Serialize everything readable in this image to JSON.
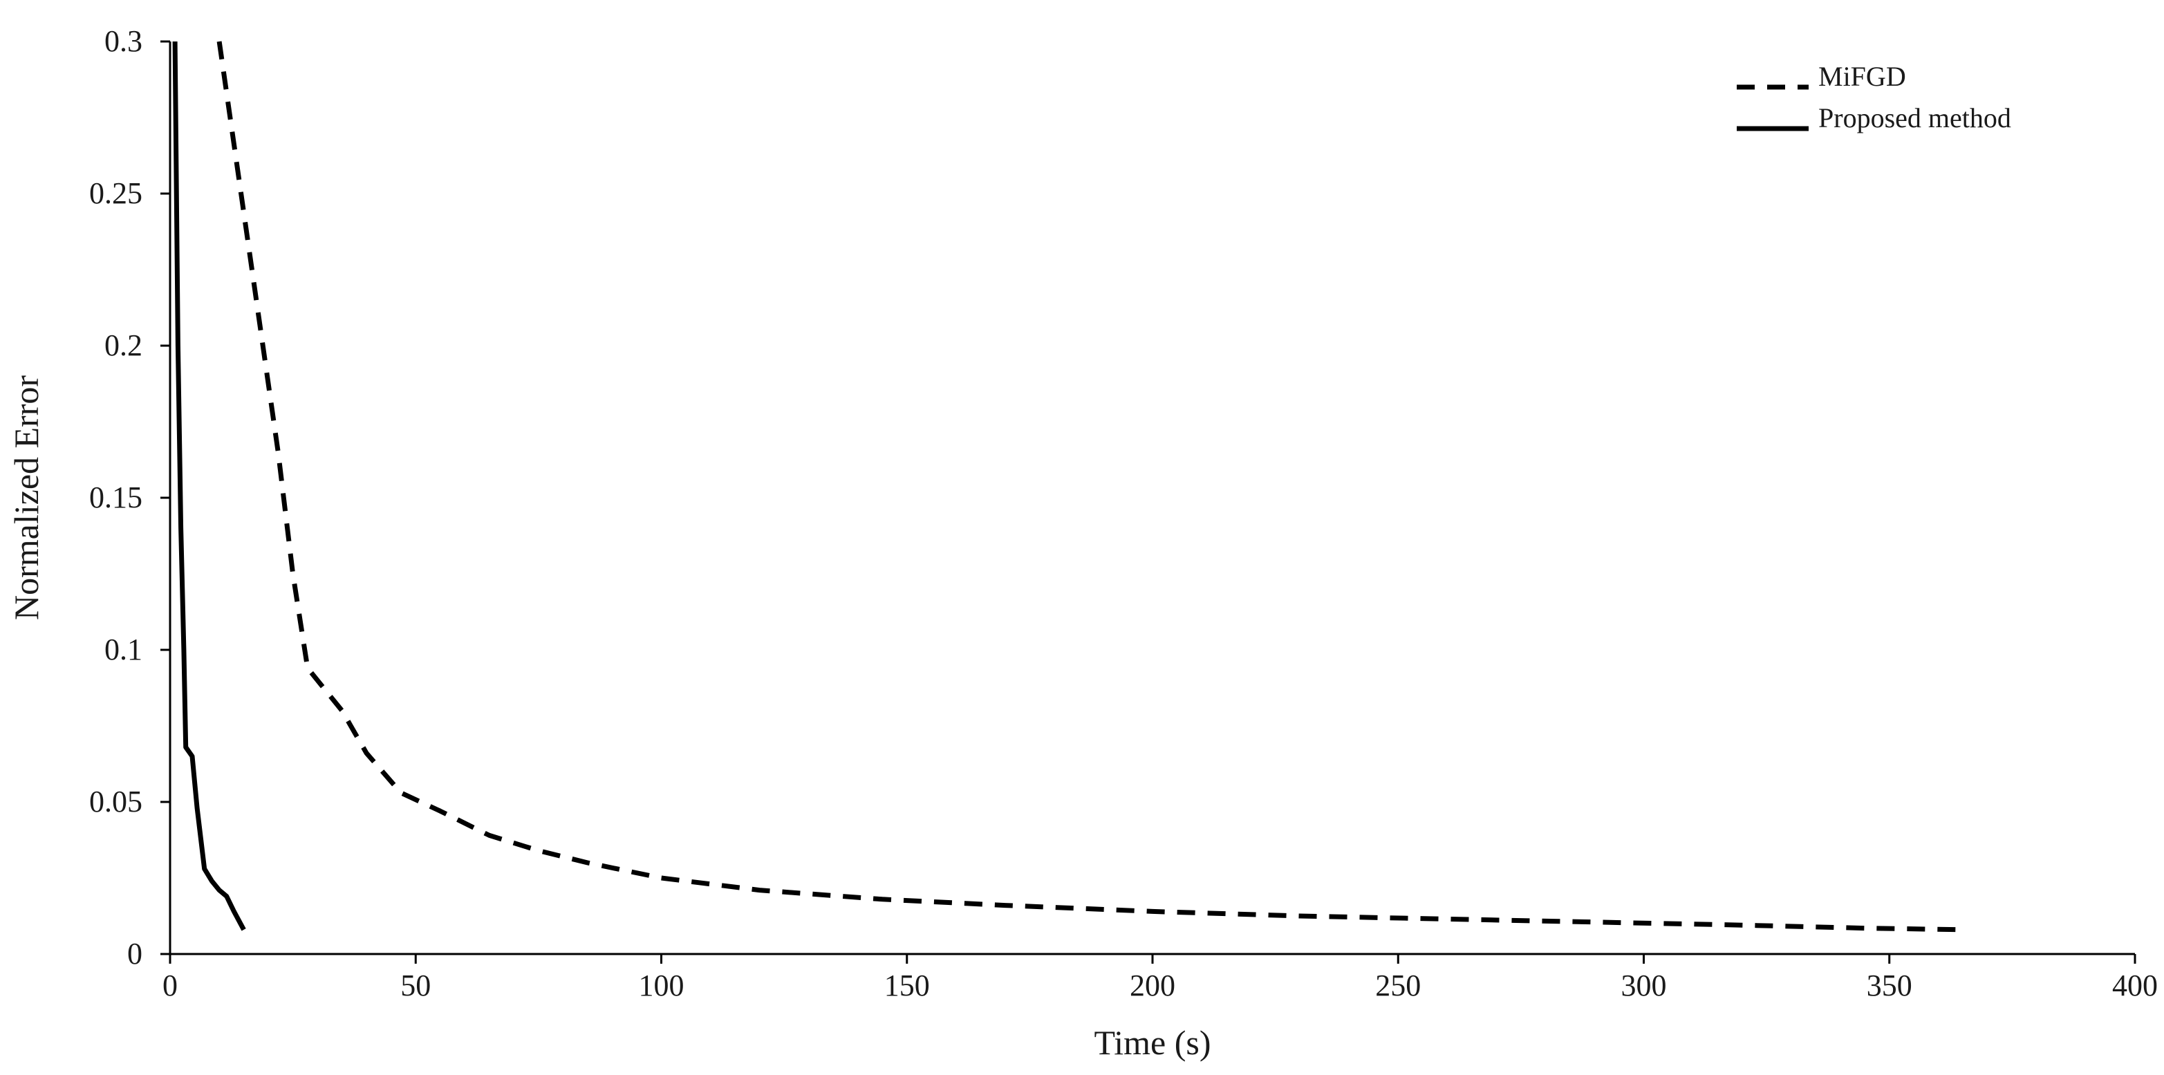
{
  "chart_data": {
    "type": "line",
    "title": "",
    "xlabel": "Time (s)",
    "ylabel": "Normalized Error",
    "xlim": [
      0,
      400
    ],
    "ylim": [
      0,
      0.3
    ],
    "x_ticks": [
      0,
      50,
      100,
      150,
      200,
      250,
      300,
      350,
      400
    ],
    "x_tick_labels": [
      "0",
      "50",
      "100",
      "150",
      "200",
      "250",
      "300",
      "350",
      "400"
    ],
    "y_ticks": [
      0,
      0.05,
      0.1,
      0.15,
      0.2,
      0.25,
      0.3
    ],
    "y_tick_labels": [
      "0",
      "0.05",
      "0.1",
      "0.15",
      "0.2",
      "0.25",
      "0.3"
    ],
    "grid": false,
    "legend_position": "top-right",
    "series": [
      {
        "name": "MiFGD",
        "line_style": "dashed",
        "color": "#000000",
        "x": [
          10,
          14,
          18,
          22,
          25,
          28,
          35,
          40,
          47,
          55,
          65,
          75,
          85,
          100,
          120,
          145,
          170,
          200,
          230,
          260,
          290,
          320,
          345,
          365
        ],
        "y": [
          0.3,
          0.255,
          0.21,
          0.165,
          0.125,
          0.094,
          0.08,
          0.066,
          0.053,
          0.047,
          0.039,
          0.034,
          0.03,
          0.025,
          0.021,
          0.018,
          0.016,
          0.014,
          0.0125,
          0.0115,
          0.0105,
          0.0095,
          0.0085,
          0.008
        ]
      },
      {
        "name": "Proposed method",
        "line_style": "solid",
        "color": "#000000",
        "x": [
          1,
          1.6,
          2.2,
          2.8,
          3.2,
          4.5,
          5.5,
          7,
          8.5,
          10,
          11.5,
          13,
          15
        ],
        "y": [
          0.3,
          0.2,
          0.14,
          0.1,
          0.068,
          0.065,
          0.048,
          0.028,
          0.024,
          0.021,
          0.019,
          0.014,
          0.008
        ]
      }
    ]
  }
}
